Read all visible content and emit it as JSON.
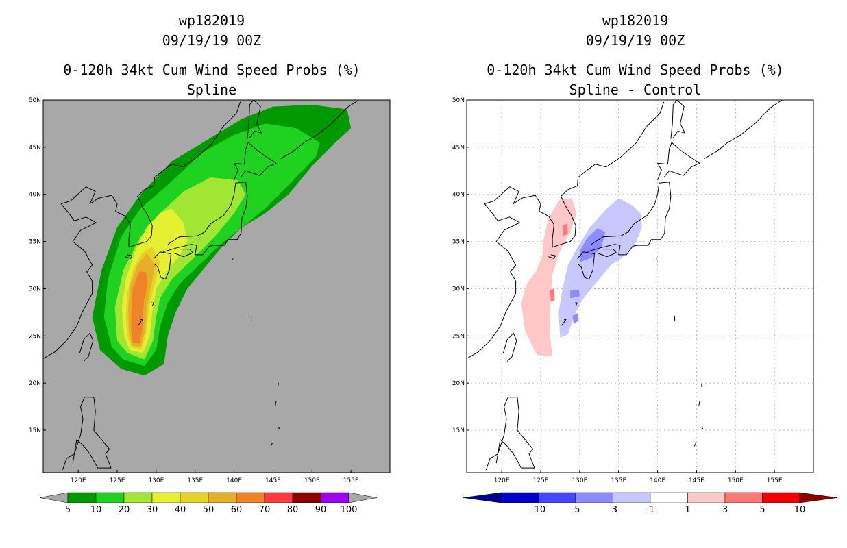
{
  "chart_data": [
    {
      "type": "heatmap",
      "panel": "left",
      "title_lines": [
        "wp182019",
        "09/19/19 00Z",
        "0-120h 34kt Cum Wind Speed Probs (%)",
        "Spline"
      ],
      "x_ticks": [
        "120E",
        "125E",
        "130E",
        "135E",
        "140E",
        "145E",
        "150E",
        "155E"
      ],
      "y_ticks": [
        "15N",
        "20N",
        "25N",
        "30N",
        "35N",
        "40N",
        "45N",
        "50N"
      ],
      "x_tick_values": [
        120,
        125,
        130,
        135,
        140,
        145,
        150,
        155
      ],
      "y_tick_values": [
        15,
        20,
        25,
        30,
        35,
        40,
        45,
        50
      ],
      "xlim": [
        115.5,
        160
      ],
      "ylim": [
        10.5,
        50
      ],
      "background": "#a8a8a8",
      "colorbar": {
        "labels": [
          "5",
          "10",
          "20",
          "30",
          "40",
          "50",
          "60",
          "70",
          "80",
          "90",
          "100"
        ],
        "colors": [
          "#009a00",
          "#1fd21f",
          "#a0e632",
          "#e6f032",
          "#e6d228",
          "#e6af28",
          "#f08228",
          "#fa3c3c",
          "#8c0000",
          "#a000f0"
        ],
        "end_color": "#a8a8a8"
      },
      "contours": [
        {
          "level": 5,
          "color": "#009a00",
          "points": [
            [
              125.5,
              21.5
            ],
            [
              128.5,
              20.8
            ],
            [
              131,
              22
            ],
            [
              131.5,
              25
            ],
            [
              132.5,
              27.5
            ],
            [
              134,
              30
            ],
            [
              136,
              32
            ],
            [
              138.5,
              34.5
            ],
            [
              141,
              36.5
            ],
            [
              144,
              38
            ],
            [
              147,
              40
            ],
            [
              150,
              43
            ],
            [
              153,
              45.5
            ],
            [
              155,
              47
            ],
            [
              154.5,
              49
            ],
            [
              150,
              49.5
            ],
            [
              145,
              49.3
            ],
            [
              141,
              48
            ],
            [
              137,
              46
            ],
            [
              132,
              43.5
            ],
            [
              128,
              40
            ],
            [
              125,
              36.5
            ],
            [
              123,
              32
            ],
            [
              121.8,
              27
            ],
            [
              122.8,
              23.5
            ]
          ]
        },
        {
          "level": 10,
          "color": "#1fd21f",
          "points": [
            [
              125.8,
              22.5
            ],
            [
              128.5,
              21.8
            ],
            [
              130,
              23.5
            ],
            [
              130.5,
              26
            ],
            [
              131.5,
              28.5
            ],
            [
              133,
              30.5
            ],
            [
              135.5,
              32.5
            ],
            [
              138,
              34.5
            ],
            [
              141,
              36.5
            ],
            [
              144,
              38.5
            ],
            [
              147,
              41
            ],
            [
              150.5,
              44
            ],
            [
              151,
              45.5
            ],
            [
              148,
              47
            ],
            [
              144,
              47.5
            ],
            [
              140,
              46.3
            ],
            [
              136,
              44.5
            ],
            [
              131.5,
              41
            ],
            [
              128,
              38.5
            ],
            [
              125.5,
              35.5
            ],
            [
              123.8,
              31
            ],
            [
              123.3,
              27
            ],
            [
              124.3,
              23.8
            ]
          ]
        },
        {
          "level": 20,
          "color": "#a0e632",
          "points": [
            [
              126.3,
              23.2
            ],
            [
              128.5,
              22.5
            ],
            [
              129.6,
              24.5
            ],
            [
              130,
              27
            ],
            [
              130.5,
              29
            ],
            [
              132,
              31
            ],
            [
              134.5,
              33
            ],
            [
              137.5,
              35.5
            ],
            [
              140,
              38
            ],
            [
              141.5,
              40
            ],
            [
              140.5,
              41.5
            ],
            [
              137,
              41.8
            ],
            [
              133.5,
              40.3
            ],
            [
              130.5,
              38
            ],
            [
              128,
              35.5
            ],
            [
              125.8,
              32
            ],
            [
              124.7,
              28
            ],
            [
              125,
              24.5
            ]
          ]
        },
        {
          "level": 30,
          "color": "#e6f032",
          "points": [
            [
              126.6,
              23.5
            ],
            [
              128.3,
              23.2
            ],
            [
              129.2,
              25
            ],
            [
              129.5,
              27.5
            ],
            [
              130,
              30
            ],
            [
              131.5,
              32
            ],
            [
              133,
              33.5
            ],
            [
              134,
              35
            ],
            [
              133.5,
              37
            ],
            [
              132,
              38.5
            ],
            [
              130.5,
              38
            ],
            [
              128.8,
              36.5
            ],
            [
              127.3,
              34
            ],
            [
              126.1,
              31
            ],
            [
              125.6,
              28
            ],
            [
              125.9,
              25
            ]
          ]
        },
        {
          "level": 40,
          "color": "#e6d228",
          "points": [
            [
              126.8,
              23.8
            ],
            [
              128.1,
              23.5
            ],
            [
              128.8,
              25.5
            ],
            [
              129.1,
              28
            ],
            [
              129.8,
              30.5
            ],
            [
              130.5,
              32.8
            ],
            [
              129.5,
              34.5
            ],
            [
              128.2,
              33.8
            ],
            [
              127,
              32
            ],
            [
              126.3,
              29.5
            ],
            [
              126.1,
              27
            ],
            [
              126.3,
              25
            ]
          ]
        },
        {
          "level": 50,
          "color": "#e6af28",
          "points": [
            [
              126.9,
              24
            ],
            [
              128,
              23.8
            ],
            [
              128.6,
              25.5
            ],
            [
              128.8,
              28
            ],
            [
              129.4,
              30.5
            ],
            [
              129.9,
              32.5
            ],
            [
              128.8,
              33.8
            ],
            [
              127.6,
              32.5
            ],
            [
              126.7,
              30.5
            ],
            [
              126.4,
              28
            ],
            [
              126.5,
              25.5
            ]
          ]
        },
        {
          "level": 60,
          "color": "#f08228",
          "points": [
            [
              127,
              24.3
            ],
            [
              127.9,
              24.2
            ],
            [
              128.3,
              26
            ],
            [
              128.4,
              28.5
            ],
            [
              128.9,
              30.5
            ],
            [
              128.7,
              31.8
            ],
            [
              127.8,
              31.8
            ],
            [
              127,
              30
            ],
            [
              126.8,
              27.5
            ],
            [
              126.8,
              25.5
            ]
          ]
        }
      ]
    },
    {
      "type": "heatmap",
      "panel": "right",
      "title_lines": [
        "wp182019",
        "09/19/19 00Z",
        "0-120h 34kt Cum Wind Speed Probs (%)",
        "Spline - Control"
      ],
      "x_ticks": [
        "120E",
        "125E",
        "130E",
        "135E",
        "140E",
        "145E",
        "150E",
        "155E"
      ],
      "y_ticks": [
        "15N",
        "20N",
        "25N",
        "30N",
        "35N",
        "40N",
        "45N",
        "50N"
      ],
      "x_tick_values": [
        120,
        125,
        130,
        135,
        140,
        145,
        150,
        155
      ],
      "y_tick_values": [
        15,
        20,
        25,
        30,
        35,
        40,
        45,
        50
      ],
      "xlim": [
        115.5,
        160
      ],
      "ylim": [
        10.5,
        50
      ],
      "background": "#ffffff",
      "gridlines": true,
      "colorbar": {
        "labels": [
          "-10",
          "-5",
          "-3",
          "-1",
          "1",
          "3",
          "5",
          "10"
        ],
        "colors": [
          "#0000c8",
          "#4646ff",
          "#8c8cff",
          "#c8c8ff",
          "#ffffff",
          "#ffc8c8",
          "#ff7878",
          "#f00000"
        ],
        "low_end_color": "#00008c",
        "high_end_color": "#8c0000"
      },
      "contours": [
        {
          "level": 1,
          "color": "#ffc8c8",
          "points": [
            [
              124.5,
              23
            ],
            [
              126.5,
              22.8
            ],
            [
              126.2,
              25
            ],
            [
              126.2,
              27.5
            ],
            [
              126.5,
              31.5
            ],
            [
              127.5,
              34
            ],
            [
              128.8,
              36
            ],
            [
              129.6,
              38
            ],
            [
              129,
              39.6
            ],
            [
              127.5,
              39.5
            ],
            [
              126,
              37.5
            ],
            [
              125.3,
              35
            ],
            [
              125.2,
              33.5
            ],
            [
              124.5,
              32
            ],
            [
              123.2,
              30.5
            ],
            [
              122.5,
              28.5
            ],
            [
              123,
              25.5
            ]
          ]
        },
        {
          "level": 1,
          "color": "#c8c8ff",
          "points": [
            [
              127.5,
              24.8
            ],
            [
              128.5,
              25.2
            ],
            [
              129.5,
              27.5
            ],
            [
              130.5,
              29
            ],
            [
              132,
              30.5
            ],
            [
              134,
              32.5
            ],
            [
              135,
              33
            ],
            [
              137,
              34.5
            ],
            [
              138,
              36.5
            ],
            [
              137.8,
              38
            ],
            [
              136.8,
              38.8
            ],
            [
              135,
              39.6
            ],
            [
              133.5,
              38.5
            ],
            [
              131.3,
              36.5
            ],
            [
              129.8,
              34.5
            ],
            [
              128.5,
              32.5
            ],
            [
              127.8,
              30
            ],
            [
              127.3,
              27.5
            ]
          ]
        },
        {
          "level": 3,
          "color": "#8c8cff",
          "points": [
            [
              130,
              32.8
            ],
            [
              131.5,
              33.3
            ],
            [
              132.8,
              34.4
            ],
            [
              133.3,
              36
            ],
            [
              132.3,
              36.4
            ],
            [
              131,
              35.4
            ],
            [
              130,
              34
            ]
          ]
        },
        {
          "level": 3,
          "color": "#8c8cff",
          "points": [
            [
              128.8,
              29
            ],
            [
              130,
              29.2
            ],
            [
              129.9,
              29.9
            ],
            [
              128.8,
              29.8
            ]
          ]
        },
        {
          "level": 3,
          "color": "#8c8cff",
          "points": [
            [
              129.2,
              26.3
            ],
            [
              129.9,
              26.6
            ],
            [
              129.7,
              27.4
            ],
            [
              129.1,
              27.1
            ]
          ]
        },
        {
          "level": 3,
          "color": "#ff7878",
          "points": [
            [
              126.3,
              28.6
            ],
            [
              126.8,
              28.8
            ],
            [
              126.7,
              30
            ],
            [
              126.2,
              29.8
            ]
          ]
        },
        {
          "level": 3,
          "color": "#ff7878",
          "points": [
            [
              127.9,
              35.6
            ],
            [
              128.5,
              35.8
            ],
            [
              128.4,
              36.9
            ],
            [
              127.8,
              36.7
            ]
          ]
        }
      ]
    }
  ]
}
